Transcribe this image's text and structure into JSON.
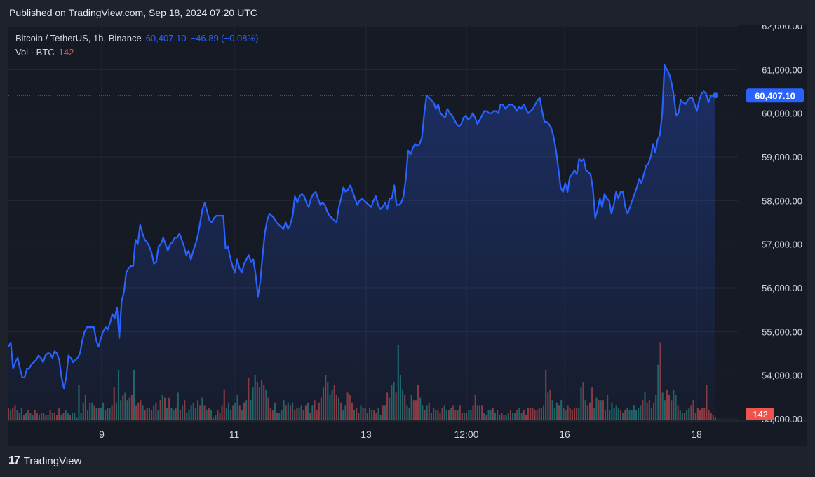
{
  "header": {
    "published": "Published on TradingView.com, Sep 18, 2024 07:20 UTC"
  },
  "legend": {
    "symbol": "Bitcoin / TetherUS, 1h, Binance",
    "last": "60,407.10",
    "change": "−46.89 (−0.08%)",
    "vol_label": "Vol · BTC",
    "vol_value": "142"
  },
  "badges": {
    "price": "60,407.10",
    "volume": "142"
  },
  "footer": {
    "brand": "TradingView"
  },
  "colors": {
    "line": "#2962ff",
    "up": "#26a69a",
    "down": "#ef5350",
    "bg": "#161a25",
    "grid": "#242833"
  },
  "chart_data": {
    "type": "area",
    "y_ticks": [
      "62,000.00",
      "61,000.00",
      "60,000.00",
      "59,000.00",
      "58,000.00",
      "57,000.00",
      "56,000.00",
      "55,000.00",
      "54,000.00",
      "53,000.00"
    ],
    "x_ticks": [
      "9",
      "11",
      "13",
      "12:00",
      "16",
      "18"
    ],
    "ylim": [
      53000,
      62000
    ],
    "price": [
      54650,
      54750,
      54150,
      54300,
      54400,
      54150,
      53950,
      53950,
      54150,
      54150,
      54250,
      54300,
      54350,
      54450,
      54400,
      54300,
      54450,
      54500,
      54500,
      54400,
      54550,
      54500,
      54350,
      53950,
      53700,
      53950,
      54450,
      54400,
      54300,
      54350,
      54400,
      54500,
      54800,
      55000,
      55100,
      55100,
      55100,
      55100,
      54800,
      54650,
      54850,
      55000,
      55100,
      55050,
      55200,
      55400,
      55300,
      55550,
      54850,
      55700,
      55900,
      56350,
      56450,
      56500,
      56500,
      57100,
      57000,
      57450,
      57250,
      57100,
      57050,
      56950,
      56800,
      56550,
      56600,
      56950,
      57000,
      57150,
      57000,
      56850,
      57000,
      57050,
      57150,
      57150,
      57250,
      57100,
      56950,
      56750,
      56850,
      56650,
      56850,
      57000,
      57200,
      57500,
      57800,
      57950,
      57750,
      57550,
      57500,
      57600,
      57650,
      57650,
      57650,
      57650,
      56900,
      56950,
      56700,
      56500,
      56350,
      56650,
      56450,
      56350,
      56550,
      56650,
      56750,
      56600,
      56650,
      56300,
      55800,
      56150,
      56750,
      57250,
      57550,
      57700,
      57650,
      57600,
      57500,
      57450,
      57400,
      57350,
      57500,
      57350,
      57450,
      57650,
      58100,
      57950,
      58100,
      58150,
      58100,
      57950,
      57850,
      58050,
      58150,
      58200,
      58050,
      57900,
      57950,
      57900,
      57750,
      57650,
      57600,
      57550,
      57500,
      57850,
      58050,
      58300,
      58200,
      58250,
      58350,
      58200,
      58050,
      57900,
      58000,
      58050,
      58000,
      57950,
      57900,
      57850,
      58000,
      58100,
      57900,
      57800,
      57850,
      57950,
      57800,
      58050,
      58050,
      58350,
      57900,
      57900,
      57950,
      58100,
      58500,
      59150,
      59050,
      59200,
      59300,
      59250,
      59300,
      59450,
      60000,
      60400,
      60350,
      60300,
      60250,
      60100,
      60200,
      60000,
      59950,
      59900,
      60100,
      60000,
      59950,
      59850,
      59750,
      59700,
      59750,
      59900,
      59950,
      59850,
      59900,
      60000,
      59900,
      59750,
      59850,
      59950,
      60050,
      60050,
      60000,
      60000,
      60050,
      60050,
      60000,
      60200,
      60200,
      60100,
      60150,
      60200,
      60200,
      60150,
      60050,
      60150,
      60100,
      60200,
      60100,
      60000,
      60050,
      60100,
      60200,
      60300,
      60350,
      60050,
      59800,
      59800,
      59750,
      59650,
      59450,
      59150,
      58750,
      58300,
      58200,
      58400,
      58200,
      58550,
      58600,
      58700,
      58600,
      58950,
      58900,
      58950,
      58700,
      58650,
      58600,
      58250,
      57600,
      57800,
      58050,
      57850,
      58150,
      58050,
      58000,
      57700,
      57900,
      58200,
      58050,
      58200,
      58200,
      57850,
      57700,
      57850,
      58000,
      58150,
      58300,
      58500,
      58400,
      58600,
      58800,
      58850,
      59000,
      59300,
      59100,
      59400,
      59500,
      60000,
      61100,
      61000,
      60900,
      60700,
      60400,
      59950,
      60000,
      60300,
      60250,
      60200,
      60300,
      60350,
      60350,
      60200,
      60050,
      60300,
      60450,
      60500,
      60450,
      60250,
      60400,
      60400,
      60407.1
    ],
    "volume": [
      5,
      4,
      5,
      6,
      4,
      3,
      5,
      2,
      3,
      4,
      3,
      2,
      4,
      3,
      2,
      3,
      3,
      2,
      2,
      4,
      3,
      3,
      2,
      5,
      2,
      3,
      4,
      3,
      2,
      3,
      3,
      1,
      14,
      3,
      7,
      10,
      4,
      7,
      7,
      6,
      5,
      5,
      5,
      7,
      4,
      5,
      5,
      6,
      13,
      7,
      20,
      8,
      10,
      11,
      8,
      9,
      10,
      20,
      6,
      7,
      8,
      6,
      4,
      5,
      5,
      4,
      6,
      7,
      4,
      8,
      10,
      9,
      5,
      9,
      5,
      4,
      5,
      11,
      4,
      6,
      8,
      3,
      4,
      6,
      7,
      5,
      8,
      6,
      9,
      6,
      4,
      5,
      4,
      1,
      2,
      4,
      3,
      6,
      12,
      5,
      7,
      4,
      6,
      7,
      10,
      6,
      4,
      7,
      8,
      17,
      8,
      13,
      18,
      15,
      13,
      16,
      14,
      12,
      9,
      5,
      4,
      7,
      3,
      3,
      4,
      8,
      6,
      7,
      6,
      7,
      4,
      5,
      5,
      6,
      4,
      6,
      7,
      3,
      6,
      8,
      4,
      7,
      9,
      13,
      18,
      15,
      10,
      12,
      14,
      10,
      9,
      7,
      4,
      6,
      11,
      10,
      7,
      4,
      5,
      3,
      6,
      5,
      5,
      3,
      5,
      4,
      4,
      3,
      5,
      2,
      6,
      6,
      11,
      9,
      14,
      15,
      11,
      30,
      18,
      12,
      10,
      6,
      5,
      10,
      8,
      8,
      14,
      9,
      6,
      4,
      6,
      7,
      3,
      5,
      4,
      4,
      3,
      5,
      6,
      4,
      4,
      5,
      6,
      4,
      4,
      6,
      3,
      3,
      3,
      4,
      4,
      6,
      10,
      6,
      6,
      6,
      3,
      2,
      4,
      4,
      5,
      3,
      4,
      2,
      3,
      2,
      2,
      3,
      4,
      3,
      3,
      4,
      5,
      3,
      4,
      2,
      5,
      5,
      5,
      4,
      4,
      5,
      5,
      6,
      20,
      11,
      12,
      8,
      5,
      7,
      6,
      8,
      5,
      4,
      6,
      5,
      4,
      5,
      5,
      5,
      13,
      15,
      8,
      6,
      7,
      13,
      5,
      9,
      8,
      8,
      8,
      4,
      10,
      4,
      7,
      5,
      6,
      5,
      4,
      3,
      4,
      5,
      4,
      4,
      6,
      4,
      5,
      6,
      8,
      11,
      7,
      8,
      5,
      7,
      10,
      22,
      31,
      11,
      8,
      12,
      10,
      8,
      12,
      10,
      6,
      4,
      3,
      3,
      4,
      5,
      6,
      8,
      3,
      5,
      4,
      5,
      5,
      14,
      4,
      3,
      2,
      1
    ],
    "volume_up": [
      false,
      true,
      false,
      false,
      true,
      false,
      true,
      false,
      true,
      false,
      true,
      true,
      false,
      false,
      true,
      false,
      true,
      false,
      true,
      false,
      true,
      false,
      false,
      false,
      true,
      false,
      true,
      true,
      false,
      true,
      true,
      true,
      true,
      true,
      true,
      false,
      true,
      true,
      true,
      false,
      true,
      false,
      true,
      true,
      false,
      true,
      true,
      false,
      false,
      true,
      true,
      true,
      false,
      true,
      true,
      true,
      false,
      true,
      false,
      false,
      false,
      true,
      false,
      false,
      false,
      false,
      true,
      false,
      true,
      false,
      true,
      false,
      true,
      false,
      true,
      true,
      false,
      true,
      false,
      true,
      false,
      true,
      true,
      true,
      true,
      true,
      false,
      false,
      true,
      false,
      true,
      false,
      true,
      false,
      true,
      false,
      false,
      false,
      false,
      true,
      true,
      true,
      false,
      true,
      true,
      false,
      true,
      false,
      true,
      false,
      true,
      true,
      true,
      false,
      true,
      false,
      false,
      true,
      false,
      false,
      false,
      true,
      false,
      true,
      true,
      true,
      false,
      true,
      false,
      true,
      false,
      false,
      true,
      true,
      false,
      false,
      true,
      false,
      true,
      false,
      false,
      false,
      false,
      false,
      false,
      true,
      true,
      true,
      false,
      false,
      true,
      false,
      true,
      true,
      false,
      false,
      false,
      true,
      false,
      false,
      true,
      false,
      true,
      false,
      false,
      true,
      false,
      false,
      true,
      true,
      false,
      true,
      false,
      true,
      true,
      true,
      false,
      true,
      true,
      true,
      false,
      true,
      true,
      true,
      false,
      false,
      false,
      true,
      true,
      false,
      true,
      false,
      false,
      false,
      true,
      false,
      false,
      false,
      true,
      true,
      false,
      true,
      false,
      false,
      true,
      false,
      false,
      true,
      false,
      true,
      true,
      false,
      false,
      false,
      true,
      false,
      true,
      false,
      true,
      true,
      false,
      true,
      false,
      true,
      false,
      false,
      true,
      true,
      false,
      true,
      true,
      false,
      true,
      true,
      false,
      false,
      false,
      false,
      false,
      false,
      false,
      false,
      false,
      true,
      false,
      true,
      false,
      true,
      true,
      true,
      false,
      true,
      false,
      true,
      false,
      false,
      false,
      false,
      false,
      true,
      true,
      false,
      true,
      false,
      false,
      false,
      true,
      true,
      false,
      true,
      false,
      false,
      true,
      true,
      true,
      true,
      true,
      true,
      false,
      true,
      false,
      true,
      true,
      true,
      true,
      true,
      true,
      true,
      false,
      true,
      false,
      false,
      true,
      false,
      true,
      true,
      false,
      true,
      true,
      false,
      false,
      false,
      true,
      true,
      false,
      true,
      true,
      false,
      true,
      true,
      false
    ]
  }
}
